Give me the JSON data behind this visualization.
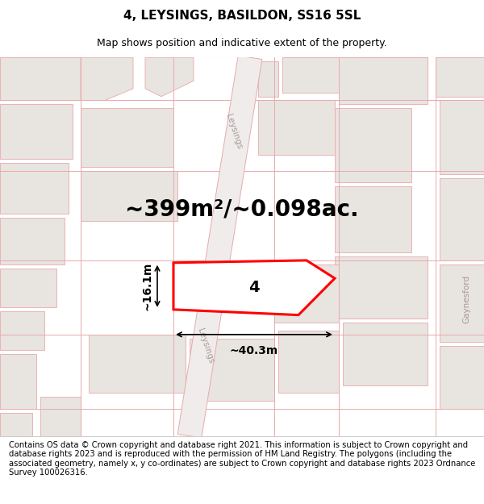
{
  "title": "4, LEYSINGS, BASILDON, SS16 5SL",
  "subtitle": "Map shows position and indicative extent of the property.",
  "footer": "Contains OS data © Crown copyright and database right 2021. This information is subject to Crown copyright and database rights 2023 and is reproduced with the permission of HM Land Registry. The polygons (including the associated geometry, namely x, y co-ordinates) are subject to Crown copyright and database rights 2023 Ordnance Survey 100026316.",
  "area_text": "~399m²/~0.098ac.",
  "width_label": "~40.3m",
  "height_label": "~16.1m",
  "plot_label": "4",
  "bg_color": "#f7f6f4",
  "map_bg": "#f7f6f4",
  "plot_outline": "#e8ddd8",
  "road_line": "#e8aaaa",
  "road_fill": "#f0e8e8",
  "block_fill": "#e8e4e0",
  "red_plot": "#ff0000",
  "title_fontsize": 11,
  "subtitle_fontsize": 9,
  "footer_fontsize": 7.2,
  "area_fontsize": 20,
  "label_fontsize": 10,
  "plot_label_fontsize": 14,
  "road_label_fontsize": 7.5,
  "road_line_lw": 0.7,
  "plot_line_lw": 0.6
}
